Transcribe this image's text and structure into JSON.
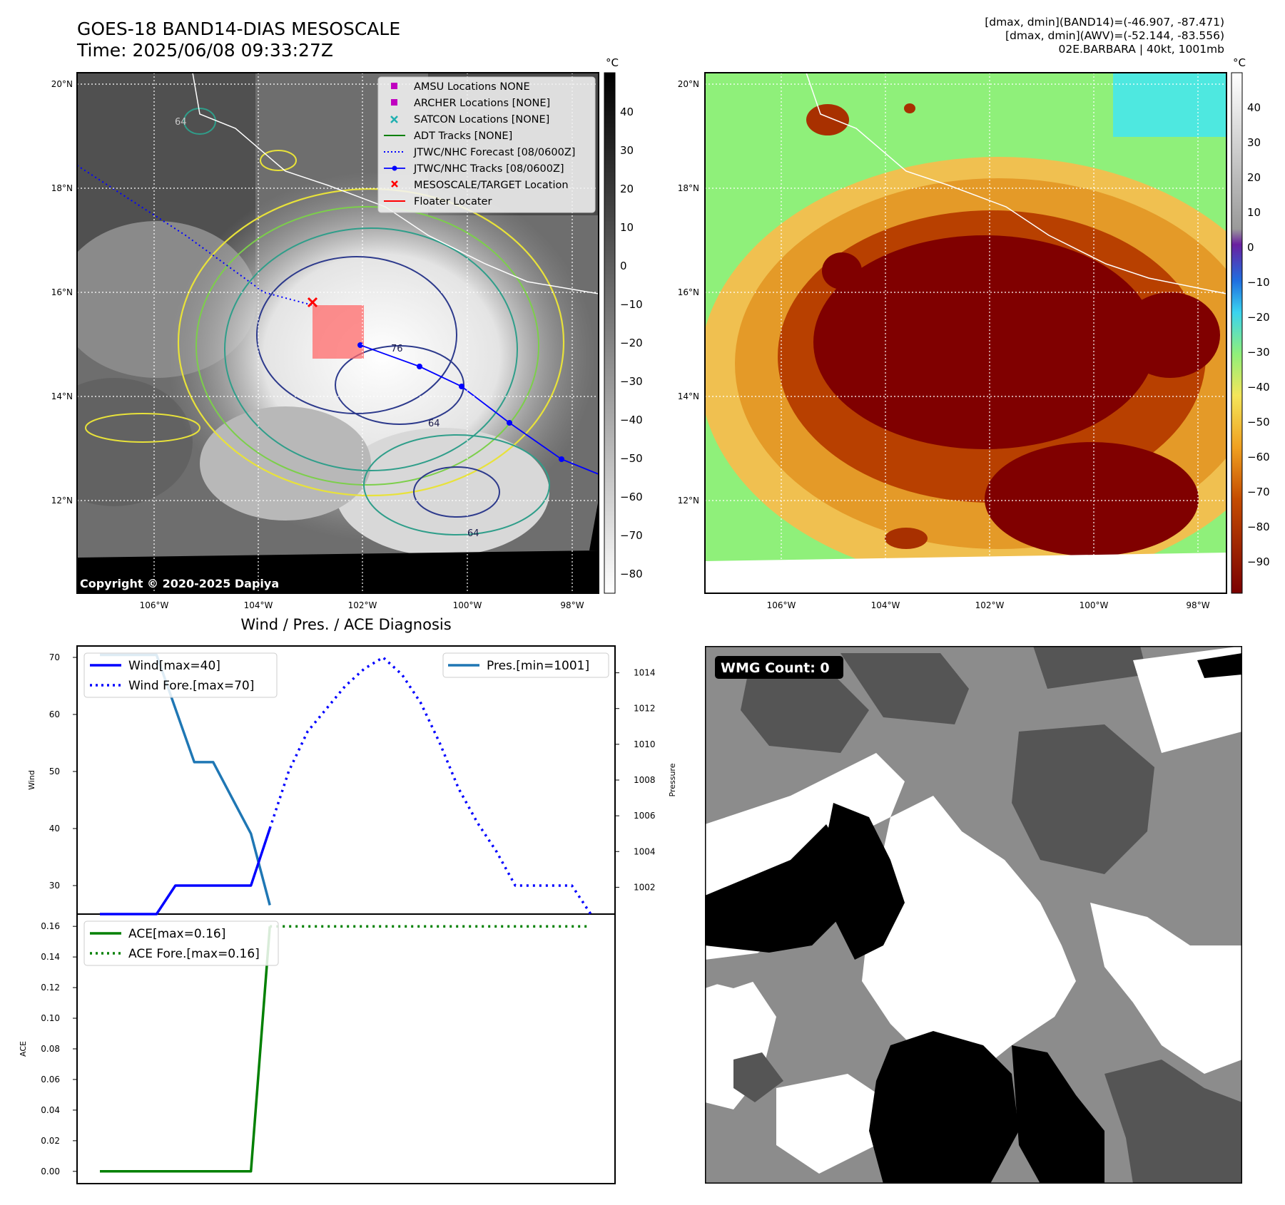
{
  "header": {
    "title_line1": "GOES-18 BAND14-DIAS MESOSCALE",
    "title_line2": "Time: 2025/06/08 09:33:27Z",
    "info_line1": "[dmax, dmin](BAND14)=(-46.907, -87.471)",
    "info_line2": "[dmax, dmin](AWV)=(-52.144, -83.556)",
    "info_line3": "02E.BARBARA | 40kt, 1001mb"
  },
  "map_left": {
    "lat_labels": [
      "20°N",
      "18°N",
      "16°N",
      "14°N",
      "12°N"
    ],
    "lon_labels": [
      "106°W",
      "104°W",
      "102°W",
      "100°W",
      "98°W"
    ],
    "copyright": "Copyright © 2020-2025 Dapiya",
    "legend": [
      {
        "label": "AMSU Locations NONE",
        "marker": "square",
        "color": "#c000c0"
      },
      {
        "label": "ARCHER Locations [NONE]",
        "marker": "square",
        "color": "#c000c0"
      },
      {
        "label": "SATCON Locations [NONE]",
        "marker": "x",
        "color": "#20b0b0"
      },
      {
        "label": "ADT Tracks [NONE]",
        "marker": "line",
        "color": "#008000"
      },
      {
        "label": "JTWC/NHC Forecast [08/0600Z]",
        "marker": "dotted",
        "color": "#0000ff"
      },
      {
        "label": "JTWC/NHC Tracks [08/0600Z]",
        "marker": "line-dot",
        "color": "#0000ff"
      },
      {
        "label": "MESOSCALE/TARGET Location",
        "marker": "x",
        "color": "#ff0000"
      },
      {
        "label": "Floater Locater",
        "marker": "line",
        "color": "#ff0000"
      }
    ],
    "colorbar_unit": "°C",
    "colorbar_ticks": [
      "40",
      "30",
      "20",
      "10",
      "0",
      "−10",
      "−20",
      "−30",
      "−40",
      "−50",
      "−60",
      "−70",
      "−80"
    ],
    "contour_labels": [
      "64",
      "76",
      "64",
      "64"
    ]
  },
  "map_right": {
    "lat_labels": [
      "20°N",
      "18°N",
      "16°N",
      "14°N",
      "12°N"
    ],
    "lon_labels": [
      "106°W",
      "104°W",
      "102°W",
      "100°W",
      "98°W"
    ],
    "colorbar_unit": "°C",
    "colorbar_ticks": [
      "40",
      "30",
      "20",
      "10",
      "0",
      "−10",
      "−20",
      "−30",
      "−40",
      "−50",
      "−60",
      "−70",
      "−80",
      "−90"
    ]
  },
  "wmg": {
    "label": "WMG Count: 0"
  },
  "colors": {
    "wind": "#0000ff",
    "pressure": "#1f77b4",
    "ace": "#008000"
  },
  "chart_data": [
    {
      "type": "line",
      "title": "Wind / Pres. / ACE Diagnosis",
      "ylabel": "Wind",
      "y2label": "Pressure",
      "ylim": [
        25,
        72
      ],
      "y2lim": [
        1000.5,
        1015.5
      ],
      "yticks": [
        "30",
        "40",
        "50",
        "60",
        "70"
      ],
      "y2ticks": [
        "1002",
        "1004",
        "1006",
        "1008",
        "1010",
        "1012",
        "1014"
      ],
      "x": [
        0,
        1,
        2,
        3,
        4,
        5,
        6,
        7,
        8,
        9,
        10,
        11,
        12,
        13,
        14,
        15,
        16,
        17,
        18,
        19,
        20,
        21,
        22,
        23,
        24,
        25,
        26
      ],
      "series": [
        {
          "name": "Wind[max=40]",
          "x": [
            0,
            1,
            2,
            3,
            4,
            5,
            6,
            7,
            8,
            9
          ],
          "values": [
            25,
            25,
            25,
            25,
            30,
            30,
            30,
            30,
            30,
            40
          ]
        },
        {
          "name": "Wind Fore.[max=70]",
          "style": "dotted",
          "x": [
            9,
            10,
            11,
            12,
            13,
            14,
            15,
            16,
            17,
            18,
            19,
            20,
            21,
            22,
            23,
            24,
            25,
            26
          ],
          "values": [
            40,
            50,
            57,
            61,
            65,
            68,
            70,
            67,
            62,
            55,
            47,
            41,
            36,
            30,
            30,
            30,
            30,
            25
          ]
        },
        {
          "name": "Pres.[min=1001]",
          "axis": "y2",
          "x": [
            0,
            1,
            2,
            3,
            4,
            5,
            6,
            7,
            8,
            9
          ],
          "values": [
            1015,
            1015,
            1015,
            1015,
            1012,
            1009,
            1009,
            1007,
            1005,
            1001
          ]
        }
      ],
      "legend_left": [
        "Wind[max=40]",
        "Wind Fore.[max=70]"
      ],
      "legend_right": [
        "Pres.[min=1001]"
      ]
    },
    {
      "type": "line",
      "ylabel": "ACE",
      "ylim": [
        -0.008,
        0.168
      ],
      "yticks": [
        "0.00",
        "0.02",
        "0.04",
        "0.06",
        "0.08",
        "0.10",
        "0.12",
        "0.14",
        "0.16"
      ],
      "series": [
        {
          "name": "ACE[max=0.16]",
          "x": [
            0,
            1,
            2,
            3,
            4,
            5,
            6,
            7,
            8,
            9
          ],
          "values": [
            0,
            0,
            0,
            0,
            0,
            0,
            0,
            0,
            0,
            0.16
          ]
        },
        {
          "name": "ACE Fore.[max=0.16]",
          "style": "dotted",
          "x": [
            9,
            26
          ],
          "values": [
            0.16,
            0.16
          ]
        }
      ]
    }
  ]
}
